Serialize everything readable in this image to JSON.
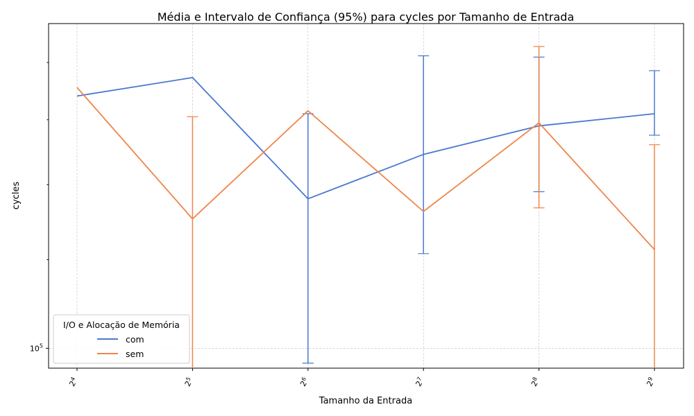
{
  "chart_data": {
    "type": "line",
    "title": "Média e Intervalo de Confiança (95%) para cycles por Tamanho de Entrada",
    "xlabel": "Tamanho da Entrada",
    "ylabel": "cycles",
    "x_scale": "log2",
    "y_scale": "log10",
    "x": [
      16,
      32,
      64,
      128,
      256,
      512
    ],
    "x_tick_labels": [
      {
        "base": "2",
        "exp": "4"
      },
      {
        "base": "2",
        "exp": "5"
      },
      {
        "base": "2",
        "exp": "6"
      },
      {
        "base": "2",
        "exp": "7"
      },
      {
        "base": "2",
        "exp": "8"
      },
      {
        "base": "2",
        "exp": "9"
      }
    ],
    "y_tick_labels": [
      {
        "base": "10",
        "exp": "5",
        "value": 100000
      }
    ],
    "ylim": [
      96000,
      195000
    ],
    "grid": true,
    "legend": {
      "title": "I/O e Alocação de Memória",
      "position": "lower-left"
    },
    "series": [
      {
        "name": "com",
        "color": "#4878d0",
        "values": [
          168000,
          174500,
          136000,
          149000,
          158000,
          162000
        ],
        "ci_low": [
          null,
          null,
          97000,
          121500,
          138000,
          155000
        ],
        "ci_high": [
          null,
          null,
          162000,
          182500,
          182000,
          177000
        ]
      },
      {
        "name": "sem",
        "color": "#ee854a",
        "values": [
          171000,
          130500,
          163000,
          132500,
          159000,
          122500
        ],
        "ci_low": [
          null,
          90000,
          null,
          null,
          133500,
          90000
        ],
        "ci_high": [
          null,
          161000,
          null,
          null,
          186000,
          152000
        ]
      }
    ]
  }
}
